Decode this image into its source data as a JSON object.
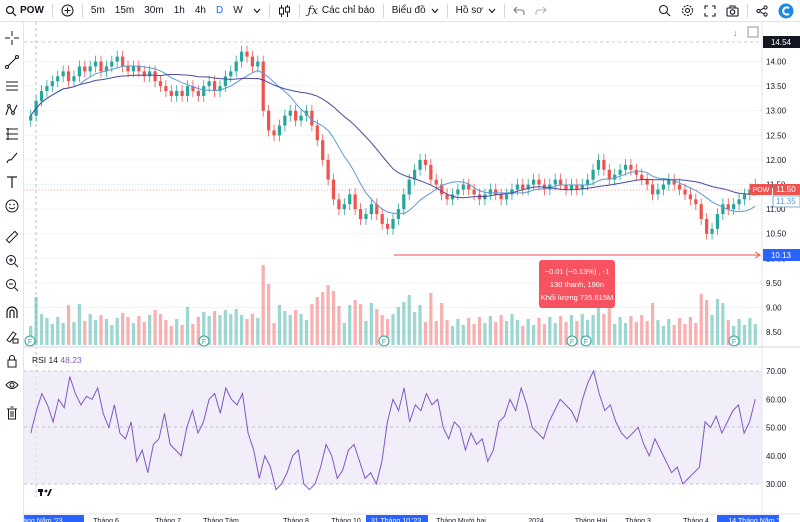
{
  "toolbar": {
    "symbol": "POW",
    "intervals": [
      "5m",
      "15m",
      "30m",
      "1h",
      "4h",
      "D",
      "W"
    ],
    "active_interval": "D",
    "indicators_label": "Các chỉ báo",
    "chart_label": "Biểu đồ",
    "profile_label": "Hồ sơ"
  },
  "price_axis": {
    "ticks": [
      "14.00",
      "13.50",
      "13.00",
      "12.50",
      "12.00",
      "11.50",
      "11.00",
      "10.50",
      "10.00",
      "9.50",
      "9.00",
      "8.50"
    ],
    "top_label": "14.54",
    "current_badge_symbol": "POW",
    "current_badge_value": "11.50",
    "ma_badge_value": "11.35",
    "line_badge_value": "10.13"
  },
  "rsi": {
    "label": "RSI",
    "period": "14",
    "value": "48.23",
    "ticks": [
      "70.00",
      "60.00",
      "50.00",
      "40.00",
      "30.00"
    ]
  },
  "tooltip": {
    "line1": "−0.01 (−0.13%) , -1",
    "line2": "130 thanh, 196n",
    "line3": "Khối lượng 735.615M"
  },
  "time_axis": [
    "04 Tháng Năm '23",
    "Tháng 6",
    "Tháng 7",
    "Tháng Tám",
    "Tháng 8",
    "Tháng 10",
    "31 Tháng 10 '23",
    "Tháng Mười hai",
    "2024",
    "Tháng Hai",
    "Tháng 3",
    "Tháng 4",
    "14 Tháng Năm '24"
  ],
  "event_marker": "F",
  "colors": {
    "up": "#26a69a",
    "down": "#ef5350",
    "accent": "#2962ff",
    "rsi_line": "#7e57c2"
  },
  "chart_data": {
    "type": "candlestick",
    "ylim": [
      8.3,
      14.6
    ],
    "close": [
      12.9,
      13.2,
      13.4,
      13.5,
      13.6,
      13.7,
      13.8,
      13.6,
      13.7,
      13.9,
      13.8,
      13.9,
      14.0,
      13.8,
      13.9,
      14.0,
      14.1,
      13.9,
      13.8,
      13.9,
      13.8,
      13.7,
      13.8,
      13.6,
      13.5,
      13.4,
      13.3,
      13.4,
      13.3,
      13.5,
      13.4,
      13.3,
      13.5,
      13.6,
      13.4,
      13.5,
      13.7,
      13.8,
      14.0,
      14.2,
      14.1,
      13.9,
      14.0,
      13.0,
      12.6,
      12.5,
      12.7,
      12.9,
      13.0,
      12.8,
      12.9,
      13.0,
      12.7,
      12.4,
      12.0,
      11.6,
      11.2,
      11.0,
      11.1,
      11.3,
      11.0,
      10.8,
      10.9,
      11.1,
      10.9,
      10.7,
      10.6,
      10.8,
      11.0,
      11.3,
      11.6,
      11.8,
      12.0,
      11.9,
      11.6,
      11.5,
      11.3,
      11.2,
      11.3,
      11.4,
      11.5,
      11.4,
      11.3,
      11.2,
      11.3,
      11.4,
      11.3,
      11.2,
      11.3,
      11.4,
      11.5,
      11.4,
      11.5,
      11.6,
      11.5,
      11.4,
      11.5,
      11.6,
      11.5,
      11.4,
      11.5,
      11.4,
      11.5,
      11.6,
      11.8,
      12.0,
      11.8,
      11.6,
      11.7,
      11.8,
      11.9,
      11.8,
      11.7,
      11.6,
      11.5,
      11.3,
      11.4,
      11.5,
      11.6,
      11.5,
      11.4,
      11.3,
      11.2,
      11.1,
      10.8,
      10.5,
      10.6,
      10.9,
      11.1,
      11.0,
      11.1,
      11.2,
      11.3,
      11.4,
      11.5
    ],
    "rsi": [
      48,
      56,
      62,
      58,
      52,
      60,
      57,
      68,
      62,
      58,
      61,
      60,
      64,
      55,
      50,
      58,
      48,
      46,
      52,
      38,
      42,
      34,
      44,
      46,
      55,
      44,
      42,
      40,
      50,
      56,
      48,
      52,
      60,
      62,
      55,
      64,
      60,
      58,
      62,
      48,
      42,
      32,
      40,
      36,
      28,
      30,
      34,
      40,
      42,
      30,
      28,
      30,
      36,
      44,
      40,
      32,
      35,
      42,
      44,
      38,
      32,
      34,
      30,
      38,
      52,
      60,
      56,
      64,
      52,
      58,
      56,
      62,
      58,
      60,
      50,
      46,
      52,
      50,
      42,
      48,
      44,
      46,
      38,
      42,
      52,
      54,
      60,
      56,
      64,
      58,
      50,
      48,
      46,
      52,
      56,
      60,
      58,
      56,
      52,
      60,
      66,
      70,
      62,
      56,
      58,
      52,
      48,
      46,
      48,
      50,
      44,
      40,
      46,
      42,
      38,
      34,
      36,
      30,
      32,
      34,
      36,
      52,
      50,
      54,
      48,
      52,
      56,
      58,
      48,
      52,
      60
    ]
  }
}
